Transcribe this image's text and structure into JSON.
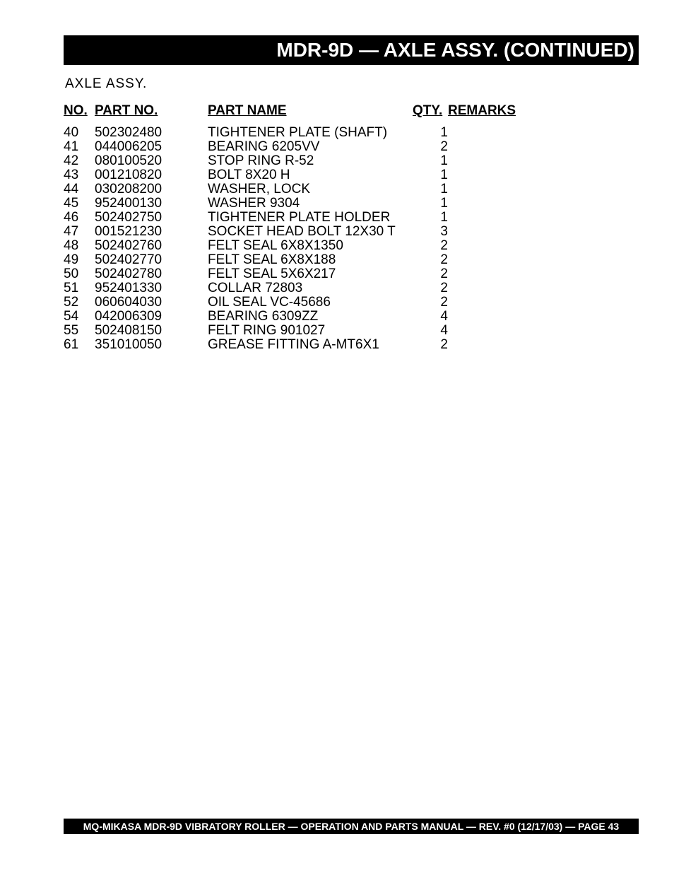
{
  "header": {
    "title": "MDR-9D  — AXLE ASSY. (CONTINUED)"
  },
  "section": {
    "subtitle": "AXLE  ASSY."
  },
  "table": {
    "columns": {
      "no": "NO.",
      "part_no": "PART NO.",
      "part_name": "PART NAME",
      "qty": "QTY.",
      "remarks": "REMARKS"
    },
    "rows": [
      {
        "no": "40",
        "part_no": "502302480",
        "part_name": "TIGHTENER PLATE (SHAFT)",
        "qty": "1",
        "remarks": ""
      },
      {
        "no": "41",
        "part_no": "044006205",
        "part_name": "BEARING 6205VV",
        "qty": "2",
        "remarks": ""
      },
      {
        "no": "42",
        "part_no": "080100520",
        "part_name": "STOP RING R-52",
        "qty": "1",
        "remarks": ""
      },
      {
        "no": "43",
        "part_no": "001210820",
        "part_name": "BOLT 8X20 H",
        "qty": "1",
        "remarks": ""
      },
      {
        "no": "44",
        "part_no": "030208200",
        "part_name": "WASHER, LOCK",
        "qty": "1",
        "remarks": ""
      },
      {
        "no": "45",
        "part_no": "952400130",
        "part_name": "WASHER 9304",
        "qty": "1",
        "remarks": ""
      },
      {
        "no": "46",
        "part_no": "502402750",
        "part_name": "TIGHTENER PLATE HOLDER",
        "qty": "1",
        "remarks": ""
      },
      {
        "no": "47",
        "part_no": "001521230",
        "part_name": "SOCKET HEAD BOLT 12X30 T",
        "qty": "3",
        "remarks": ""
      },
      {
        "no": "48",
        "part_no": "502402760",
        "part_name": "FELT SEAL 6X8X1350",
        "qty": "2",
        "remarks": ""
      },
      {
        "no": "49",
        "part_no": "502402770",
        "part_name": "FELT SEAL 6X8X188",
        "qty": "2",
        "remarks": ""
      },
      {
        "no": "50",
        "part_no": "502402780",
        "part_name": "FELT SEAL 5X6X217",
        "qty": "2",
        "remarks": ""
      },
      {
        "no": "51",
        "part_no": "952401330",
        "part_name": "COLLAR 72803",
        "qty": "2",
        "remarks": ""
      },
      {
        "no": "52",
        "part_no": "060604030",
        "part_name": "OIL SEAL VC-45686",
        "qty": "2",
        "remarks": ""
      },
      {
        "no": "54",
        "part_no": "042006309",
        "part_name": "BEARING 6309ZZ",
        "qty": "4",
        "remarks": ""
      },
      {
        "no": "55",
        "part_no": "502408150",
        "part_name": "FELT RING 901027",
        "qty": "4",
        "remarks": ""
      },
      {
        "no": "61",
        "part_no": "351010050",
        "part_name": "GREASE FITTING A-MT6X1",
        "qty": "2",
        "remarks": ""
      }
    ]
  },
  "footer": {
    "text": "MQ-MIKASA MDR-9D VIBRATORY ROLLER — OPERATION AND PARTS MANUAL — REV. #0  (12/17/03) — PAGE 43"
  }
}
